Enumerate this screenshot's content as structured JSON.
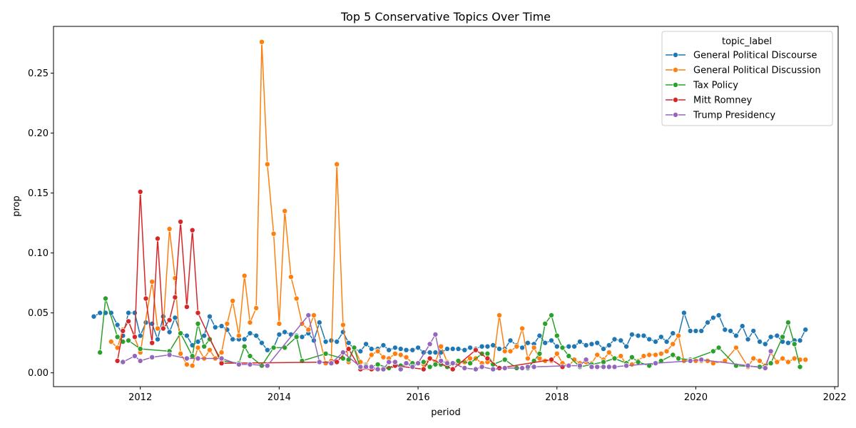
{
  "chart_data": {
    "type": "line",
    "title": "Top 5 Conservative Topics Over Time",
    "xlabel": "period",
    "ylabel": "prop",
    "xlim": [
      2010.75,
      2022.05
    ],
    "ylim": [
      -0.0115,
      0.289
    ],
    "x_ticks": [
      2012,
      2014,
      2016,
      2018,
      2020,
      2022
    ],
    "x_tick_labels": [
      "2012",
      "2014",
      "2016",
      "2018",
      "2020",
      "2022"
    ],
    "y_ticks": [
      0.0,
      0.05,
      0.1,
      0.15,
      0.2,
      0.25
    ],
    "y_tick_labels": [
      "0.00",
      "0.05",
      "0.10",
      "0.15",
      "0.20",
      "0.25"
    ],
    "grid": false,
    "legend": {
      "title": "topic_label",
      "position": "top-right"
    },
    "series": [
      {
        "name": "General Political Discourse",
        "color": "#1f77b4",
        "x": [
          2011.33,
          2011.42,
          2011.5,
          2011.58,
          2011.67,
          2011.75,
          2011.83,
          2011.92,
          2012.0,
          2012.08,
          2012.17,
          2012.25,
          2012.33,
          2012.42,
          2012.5,
          2012.58,
          2012.67,
          2012.75,
          2012.83,
          2012.92,
          2013.0,
          2013.08,
          2013.17,
          2013.25,
          2013.33,
          2013.42,
          2013.5,
          2013.58,
          2013.67,
          2013.75,
          2013.83,
          2013.92,
          2014.0,
          2014.08,
          2014.17,
          2014.25,
          2014.33,
          2014.42,
          2014.5,
          2014.58,
          2014.67,
          2014.75,
          2014.83,
          2014.92,
          2015.0,
          2015.08,
          2015.17,
          2015.25,
          2015.33,
          2015.42,
          2015.5,
          2015.58,
          2015.67,
          2015.75,
          2015.83,
          2015.92,
          2016.0,
          2016.08,
          2016.17,
          2016.25,
          2016.33,
          2016.42,
          2016.5,
          2016.58,
          2016.67,
          2016.75,
          2016.83,
          2016.92,
          2017.0,
          2017.08,
          2017.17,
          2017.25,
          2017.33,
          2017.42,
          2017.5,
          2017.58,
          2017.67,
          2017.75,
          2017.83,
          2017.92,
          2018.0,
          2018.08,
          2018.17,
          2018.25,
          2018.33,
          2018.42,
          2018.5,
          2018.58,
          2018.67,
          2018.75,
          2018.83,
          2018.92,
          2019.0,
          2019.08,
          2019.17,
          2019.25,
          2019.33,
          2019.42,
          2019.5,
          2019.58,
          2019.67,
          2019.75,
          2019.83,
          2019.92,
          2020.0,
          2020.08,
          2020.17,
          2020.25,
          2020.33,
          2020.42,
          2020.5,
          2020.58,
          2020.67,
          2020.75,
          2020.83,
          2020.92,
          2021.0,
          2021.08,
          2021.17,
          2021.25,
          2021.33,
          2021.42,
          2021.5,
          2021.58
        ],
        "y": [
          0.047,
          0.05,
          0.05,
          0.05,
          0.04,
          0.031,
          0.05,
          0.05,
          0.031,
          0.042,
          0.041,
          0.028,
          0.047,
          0.034,
          0.046,
          0.033,
          0.031,
          0.023,
          0.026,
          0.031,
          0.047,
          0.038,
          0.039,
          0.036,
          0.028,
          0.028,
          0.028,
          0.033,
          0.031,
          0.025,
          0.019,
          0.021,
          0.032,
          0.034,
          0.032,
          0.031,
          0.03,
          0.033,
          0.027,
          0.042,
          0.026,
          0.027,
          0.026,
          0.034,
          0.025,
          0.02,
          0.018,
          0.024,
          0.02,
          0.02,
          0.023,
          0.019,
          0.021,
          0.02,
          0.019,
          0.019,
          0.021,
          0.017,
          0.017,
          0.017,
          0.017,
          0.02,
          0.02,
          0.02,
          0.019,
          0.021,
          0.02,
          0.022,
          0.022,
          0.023,
          0.02,
          0.02,
          0.027,
          0.023,
          0.021,
          0.025,
          0.024,
          0.031,
          0.025,
          0.027,
          0.022,
          0.021,
          0.022,
          0.022,
          0.026,
          0.023,
          0.024,
          0.025,
          0.02,
          0.023,
          0.028,
          0.027,
          0.022,
          0.032,
          0.031,
          0.031,
          0.028,
          0.026,
          0.03,
          0.026,
          0.033,
          0.031,
          0.05,
          0.035,
          0.035,
          0.035,
          0.042,
          0.046,
          0.048,
          0.036,
          0.035,
          0.031,
          0.039,
          0.028,
          0.035,
          0.026,
          0.024,
          0.03,
          0.031,
          0.026,
          0.025,
          0.027,
          0.027,
          0.036
        ]
      },
      {
        "name": "General Political Discussion",
        "color": "#ff7f0e",
        "x": [
          2011.58,
          2011.67,
          2011.75,
          2011.83,
          2012.0,
          2012.17,
          2012.25,
          2012.33,
          2012.42,
          2012.5,
          2012.58,
          2012.67,
          2012.75,
          2012.83,
          2012.92,
          2013.0,
          2013.08,
          2013.17,
          2013.25,
          2013.33,
          2013.42,
          2013.5,
          2013.58,
          2013.67,
          2013.75,
          2013.83,
          2013.92,
          2014.0,
          2014.08,
          2014.17,
          2014.25,
          2014.33,
          2014.42,
          2014.5,
          2014.67,
          2014.75,
          2014.83,
          2014.92,
          2015.0,
          2015.08,
          2015.17,
          2015.25,
          2015.33,
          2015.42,
          2015.5,
          2015.58,
          2015.67,
          2015.75,
          2015.83,
          2015.92,
          2016.0,
          2016.08,
          2016.17,
          2016.25,
          2016.33,
          2016.42,
          2016.5,
          2016.58,
          2016.67,
          2016.75,
          2016.83,
          2016.92,
          2017.0,
          2017.08,
          2017.17,
          2017.25,
          2017.33,
          2017.42,
          2017.5,
          2017.58,
          2017.67,
          2017.75,
          2017.83,
          2017.92,
          2018.0,
          2018.08,
          2018.17,
          2018.25,
          2018.33,
          2018.42,
          2018.5,
          2018.58,
          2018.67,
          2018.75,
          2018.83,
          2018.92,
          2019.0,
          2019.08,
          2019.17,
          2019.25,
          2019.33,
          2019.42,
          2019.5,
          2019.58,
          2019.67,
          2019.75,
          2019.83,
          2019.92,
          2020.0,
          2020.08,
          2020.17,
          2020.25,
          2020.42,
          2020.58,
          2020.75,
          2020.83,
          2020.92,
          2021.0,
          2021.08,
          2021.17,
          2021.25,
          2021.33,
          2021.42,
          2021.5,
          2021.58
        ],
        "y": [
          0.026,
          0.021,
          0.036,
          0.043,
          0.017,
          0.076,
          0.037,
          0.037,
          0.12,
          0.079,
          0.016,
          0.007,
          0.006,
          0.021,
          0.012,
          0.019,
          0.012,
          0.017,
          0.041,
          0.06,
          0.031,
          0.081,
          0.042,
          0.054,
          0.276,
          0.174,
          0.116,
          0.041,
          0.135,
          0.08,
          0.062,
          0.041,
          0.036,
          0.048,
          0.008,
          0.01,
          0.174,
          0.04,
          0.009,
          0.021,
          0.009,
          0.007,
          0.015,
          0.018,
          0.013,
          0.012,
          0.016,
          0.015,
          0.013,
          0.008,
          0.008,
          0.007,
          0.012,
          0.009,
          0.022,
          0.009,
          0.008,
          0.008,
          0.009,
          0.012,
          0.012,
          0.008,
          0.009,
          0.007,
          0.048,
          0.018,
          0.018,
          0.022,
          0.037,
          0.012,
          0.021,
          0.012,
          0.01,
          0.01,
          0.016,
          0.008,
          0.006,
          0.011,
          0.008,
          0.009,
          0.008,
          0.015,
          0.011,
          0.017,
          0.012,
          0.014,
          0.007,
          0.007,
          0.01,
          0.014,
          0.015,
          0.015,
          0.016,
          0.018,
          0.024,
          0.031,
          0.01,
          0.01,
          0.01,
          0.01,
          0.01,
          0.008,
          0.01,
          0.021,
          0.005,
          0.012,
          0.01,
          0.006,
          0.017,
          0.009,
          0.012,
          0.009,
          0.012,
          0.011,
          0.011
        ]
      },
      {
        "name": "Tax Policy",
        "color": "#2ca02c",
        "x": [
          2011.42,
          2011.5,
          2011.67,
          2011.75,
          2011.83,
          2012.0,
          2012.42,
          2012.58,
          2012.75,
          2012.83,
          2012.92,
          2013.0,
          2013.17,
          2013.42,
          2013.5,
          2013.58,
          2013.75,
          2013.92,
          2014.08,
          2014.25,
          2014.33,
          2014.67,
          2014.92,
          2015.0,
          2015.08,
          2015.17,
          2015.25,
          2015.33,
          2015.42,
          2015.58,
          2015.75,
          2015.92,
          2016.08,
          2016.17,
          2016.25,
          2016.33,
          2016.42,
          2016.58,
          2016.75,
          2016.92,
          2017.0,
          2017.08,
          2017.25,
          2017.42,
          2017.58,
          2017.67,
          2017.75,
          2017.83,
          2017.92,
          2018.0,
          2018.08,
          2018.17,
          2018.33,
          2018.5,
          2018.67,
          2018.83,
          2019.0,
          2019.08,
          2019.17,
          2019.33,
          2019.5,
          2019.67,
          2019.75,
          2019.92,
          2020.25,
          2020.33,
          2020.58,
          2020.92,
          2021.08,
          2021.25,
          2021.33,
          2021.42,
          2021.5
        ],
        "y": [
          0.017,
          0.062,
          0.03,
          0.026,
          0.027,
          0.02,
          0.018,
          0.033,
          0.014,
          0.041,
          0.022,
          0.028,
          0.01,
          0.008,
          0.022,
          0.014,
          0.006,
          0.021,
          0.021,
          0.03,
          0.01,
          0.016,
          0.012,
          0.011,
          0.021,
          0.003,
          0.006,
          0.005,
          0.007,
          0.004,
          0.006,
          0.008,
          0.009,
          0.005,
          0.007,
          0.007,
          0.005,
          0.01,
          0.008,
          0.016,
          0.016,
          0.007,
          0.011,
          0.004,
          0.004,
          0.01,
          0.016,
          0.041,
          0.048,
          0.031,
          0.021,
          0.014,
          0.005,
          0.007,
          0.009,
          0.012,
          0.008,
          0.013,
          0.009,
          0.006,
          0.01,
          0.015,
          0.012,
          0.011,
          0.018,
          0.021,
          0.006,
          0.005,
          0.008,
          0.03,
          0.042,
          0.024,
          0.005
        ]
      },
      {
        "name": "Mitt Romney",
        "color": "#d62728",
        "x": [
          2011.67,
          2011.75,
          2011.83,
          2011.92,
          2012.0,
          2012.08,
          2012.17,
          2012.25,
          2012.33,
          2012.42,
          2012.5,
          2012.58,
          2012.67,
          2012.75,
          2012.83,
          2013.17,
          2014.83,
          2015.0,
          2015.17,
          2015.33,
          2015.5,
          2015.67,
          2016.08,
          2016.17,
          2016.5,
          2016.83,
          2017.0,
          2017.17,
          2017.92,
          2018.08
        ],
        "y": [
          0.01,
          0.035,
          0.043,
          0.03,
          0.151,
          0.062,
          0.025,
          0.112,
          0.037,
          0.044,
          0.063,
          0.126,
          0.055,
          0.119,
          0.05,
          0.008,
          0.009,
          0.02,
          0.003,
          0.003,
          0.003,
          0.006,
          0.003,
          0.012,
          0.003,
          0.019,
          0.012,
          0.004,
          0.011,
          0.005
        ]
      },
      {
        "name": "Trump Presidency",
        "color": "#9467bd",
        "x": [
          2011.75,
          2011.92,
          2012.0,
          2012.17,
          2012.42,
          2012.67,
          2012.83,
          2013.17,
          2013.42,
          2013.58,
          2013.83,
          2014.42,
          2014.58,
          2014.75,
          2014.92,
          2015.17,
          2015.25,
          2015.33,
          2015.42,
          2015.5,
          2015.58,
          2015.67,
          2015.75,
          2015.83,
          2015.92,
          2016.0,
          2016.17,
          2016.25,
          2016.33,
          2016.42,
          2016.5,
          2016.67,
          2016.83,
          2016.92,
          2017.08,
          2017.25,
          2017.5,
          2017.58,
          2017.67,
          2018.17,
          2018.33,
          2018.42,
          2018.5,
          2018.58,
          2018.67,
          2018.75,
          2018.83,
          2019.0,
          2019.42,
          2019.92,
          2020.08,
          2020.75,
          2021.0,
          2021.08
        ],
        "y": [
          0.009,
          0.014,
          0.01,
          0.013,
          0.015,
          0.012,
          0.012,
          0.012,
          0.007,
          0.007,
          0.006,
          0.048,
          0.009,
          0.008,
          0.017,
          0.005,
          0.005,
          0.005,
          0.003,
          0.003,
          0.009,
          0.009,
          0.003,
          0.008,
          0.005,
          0.008,
          0.024,
          0.032,
          0.01,
          0.008,
          0.008,
          0.004,
          0.003,
          0.005,
          0.003,
          0.004,
          0.004,
          0.005,
          0.005,
          0.006,
          0.006,
          0.011,
          0.005,
          0.005,
          0.005,
          0.005,
          0.005,
          0.006,
          0.008,
          0.01,
          0.011,
          0.006,
          0.004,
          0.018
        ]
      }
    ]
  }
}
